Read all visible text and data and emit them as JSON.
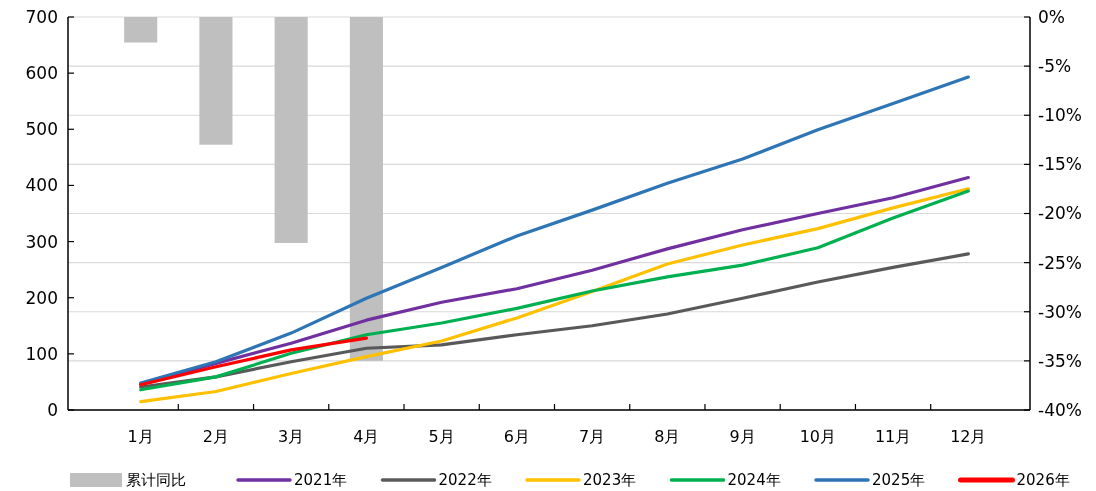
{
  "chart_data": {
    "type": "line",
    "categories": [
      "1月",
      "2月",
      "3月",
      "4月",
      "5月",
      "6月",
      "7月",
      "8月",
      "9月",
      "10月",
      "11月",
      "12月"
    ],
    "series": [
      {
        "name": "累计同比",
        "type": "bar",
        "axis": "y2",
        "color": "#bfbfbf",
        "values": [
          -2.6,
          -13,
          -23,
          -35,
          null,
          null,
          null,
          null,
          null,
          null,
          null,
          null
        ]
      },
      {
        "name": "2021年",
        "color": "#7030a0",
        "values": [
          46,
          83,
          119,
          160,
          192,
          216,
          249,
          287,
          321,
          350,
          378,
          414
        ]
      },
      {
        "name": "2022年",
        "color": "#595959",
        "values": [
          41,
          59,
          86,
          110,
          116,
          134,
          150,
          171,
          199,
          228,
          254,
          278
        ]
      },
      {
        "name": "2023年",
        "color": "#ffc000",
        "values": [
          15,
          33,
          65,
          95,
          123,
          164,
          211,
          260,
          294,
          323,
          360,
          394
        ]
      },
      {
        "name": "2024年",
        "color": "#00b050",
        "values": [
          36,
          59,
          101,
          134,
          155,
          181,
          212,
          237,
          258,
          289,
          342,
          390
        ]
      },
      {
        "name": "2025年",
        "color": "#2e75b6",
        "values": [
          48,
          86,
          137,
          199,
          254,
          310,
          356,
          404,
          447,
          499,
          546,
          593
        ]
      },
      {
        "name": "2026年",
        "color": "#ff0000",
        "values": [
          45,
          77,
          107,
          128,
          null,
          null,
          null,
          null,
          null,
          null,
          null,
          null
        ]
      }
    ],
    "ylim": [
      0,
      700
    ],
    "yticks": [
      0,
      100,
      200,
      300,
      400,
      500,
      600,
      700
    ],
    "y2lim": [
      -40,
      0
    ],
    "y2ticks": [
      {
        "value": 0,
        "label": "0%"
      },
      {
        "value": -5,
        "label": "-5%"
      },
      {
        "value": -10,
        "label": "-10%"
      },
      {
        "value": -15,
        "label": "-15%"
      },
      {
        "value": -20,
        "label": "-20%"
      },
      {
        "value": -25,
        "label": "-25%"
      },
      {
        "value": -30,
        "label": "-30%"
      },
      {
        "value": -35,
        "label": "-35%"
      },
      {
        "value": -40,
        "label": "-40%"
      }
    ],
    "grid": "y2",
    "legend": "bottom"
  }
}
